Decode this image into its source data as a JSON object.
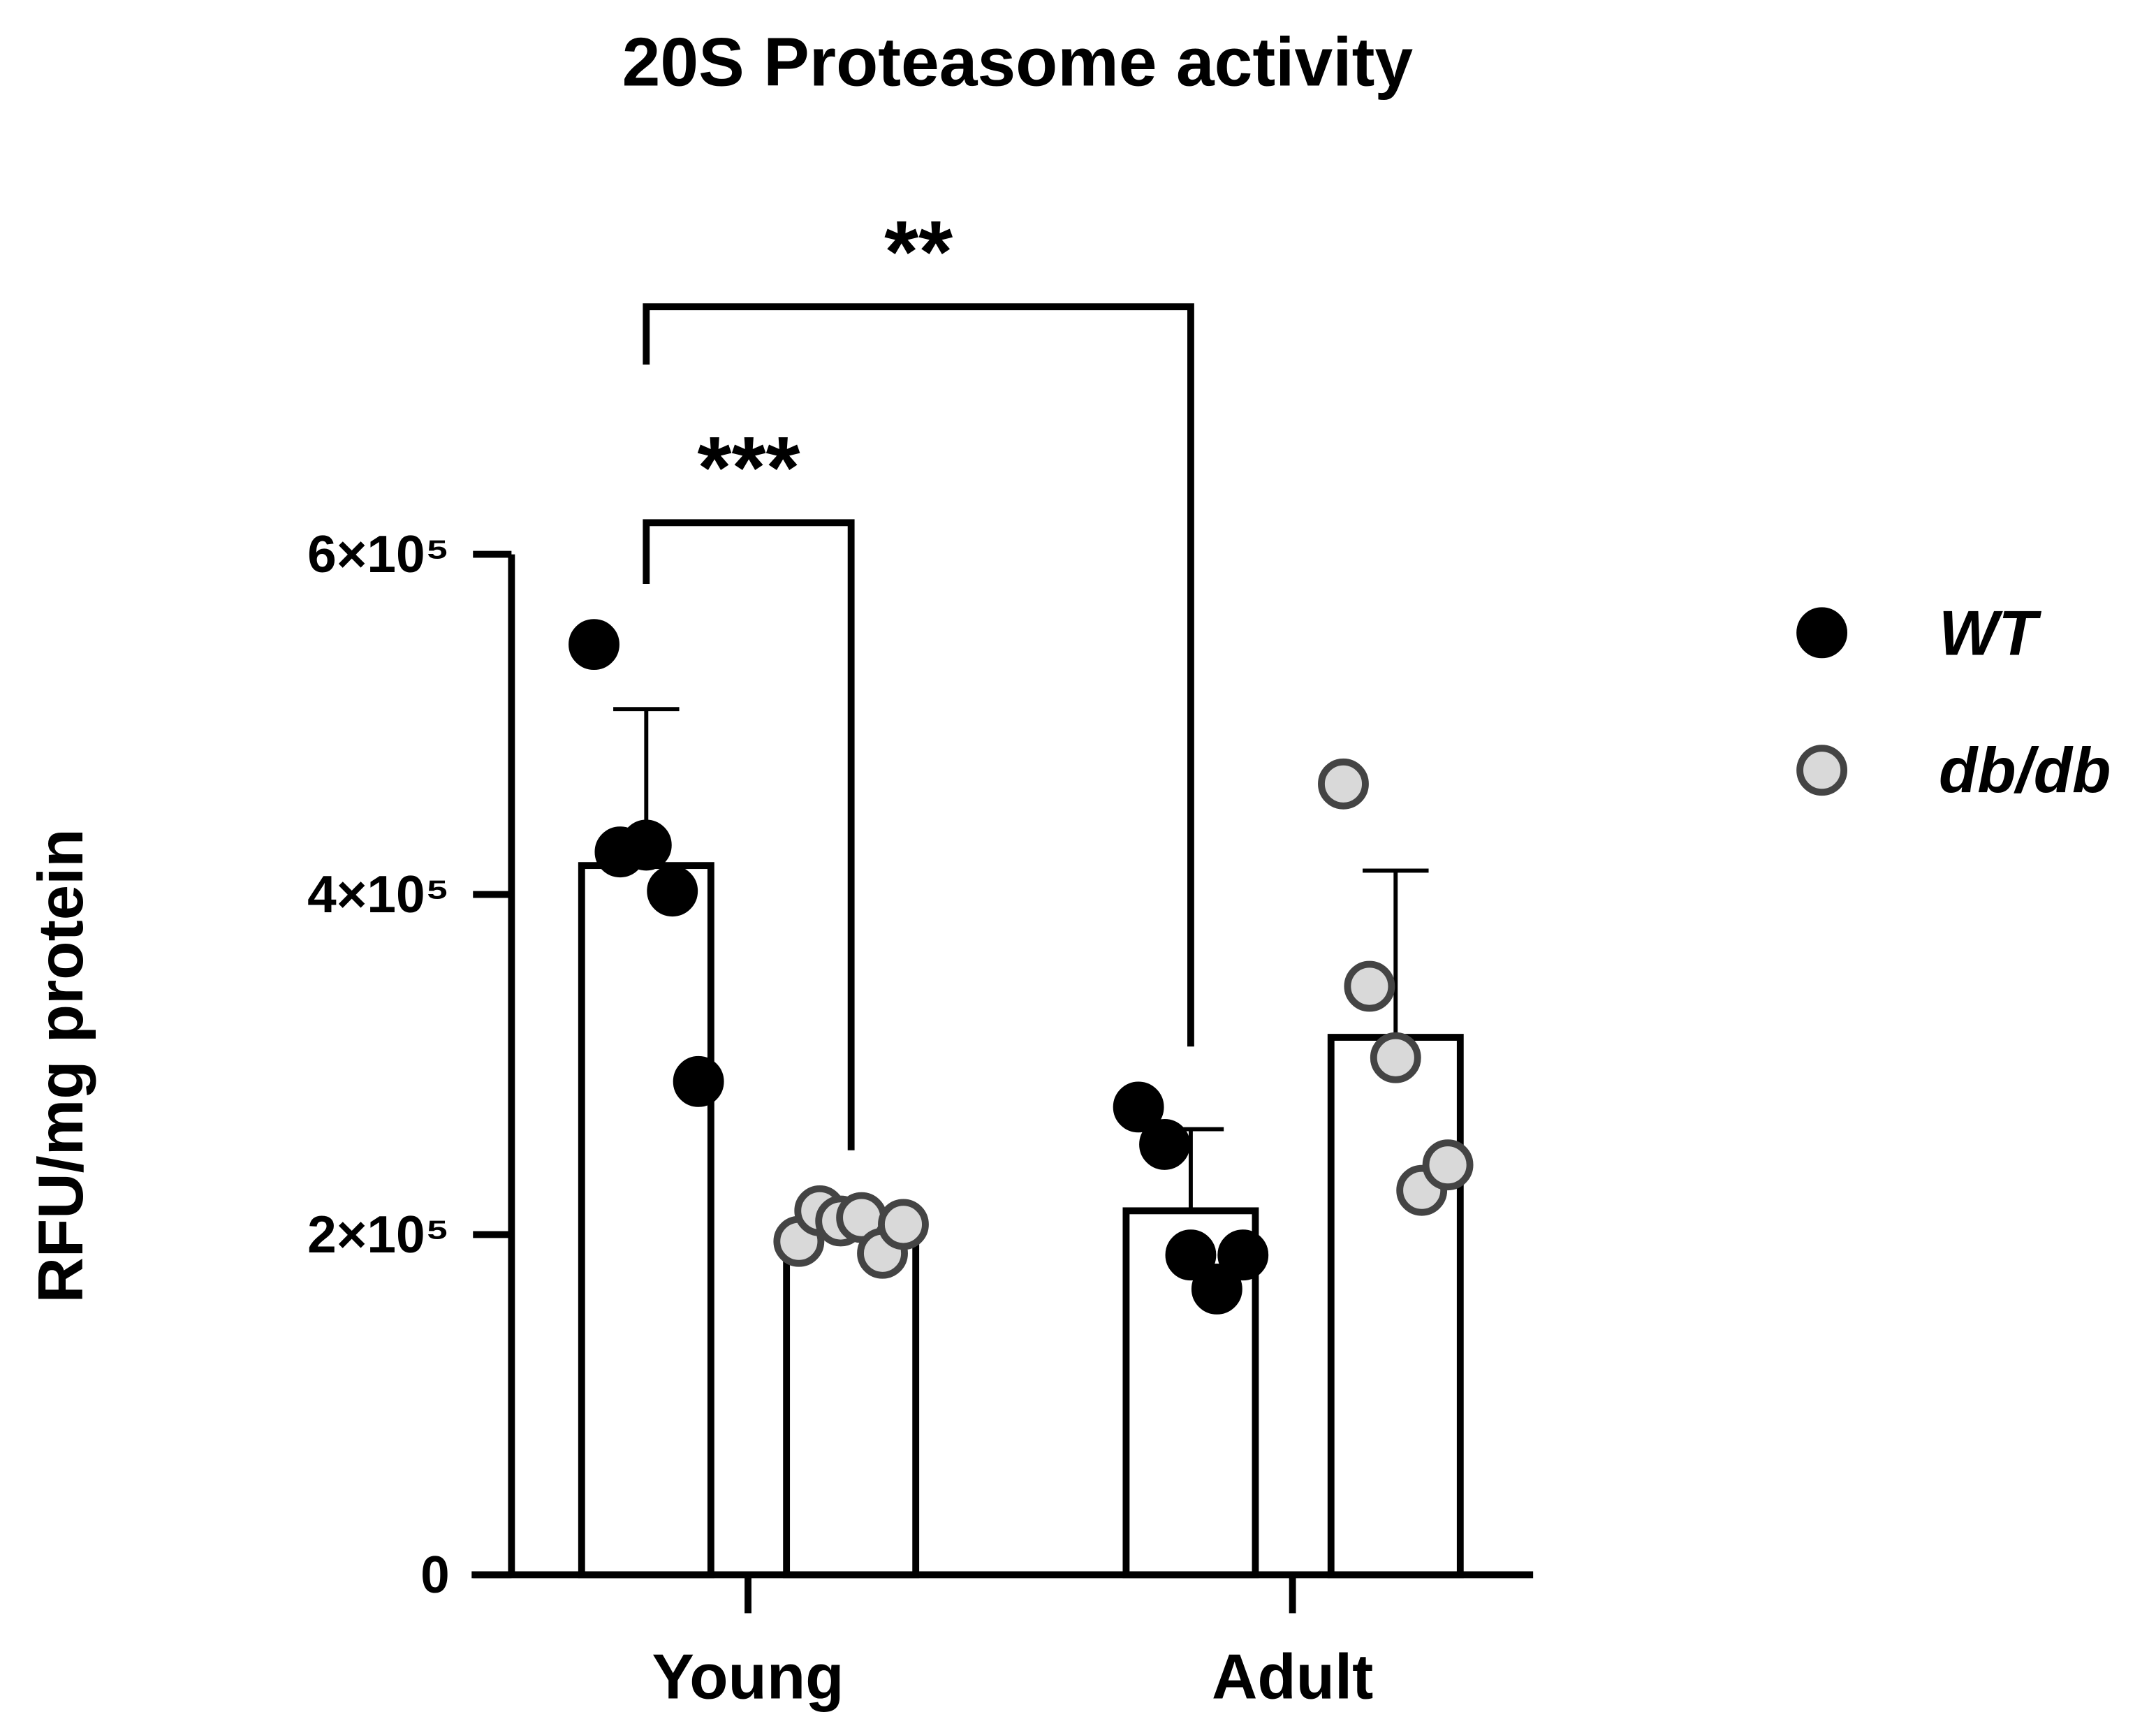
{
  "chart_data": {
    "type": "bar_scatter",
    "title": "20S Proteasome activity",
    "y_label": "RFU/mg protein",
    "categories": [
      "Young",
      "Adult"
    ],
    "series": [
      {
        "name": "WT",
        "color": "#000000",
        "values": [
          417000,
          214000
        ],
        "errors": [
          92000,
          48000
        ],
        "points": [
          [
            547000,
            425000,
            429000,
            402000,
            290000
          ],
          [
            275000,
            253000,
            188000,
            168000,
            188000
          ]
        ]
      },
      {
        "name": "db/db",
        "color": "#d9d9d9",
        "values": [
          204000,
          316000
        ],
        "errors": [
          9000,
          98000
        ],
        "points": [
          [
            196000,
            214000,
            208000,
            210000,
            189000,
            206000
          ],
          [
            465000,
            346000,
            304000,
            226000,
            241000
          ]
        ]
      }
    ],
    "ylim": [
      0,
      600000
    ],
    "yticks": [
      0,
      {
        "value": 200000,
        "label": "2×10⁵"
      },
      {
        "value": 400000,
        "label": "4×10⁵"
      },
      {
        "value": 600000,
        "label": "6×10⁵"
      }
    ],
    "significance": [
      {
        "text": "***",
        "between": [
          [
            0,
            0
          ],
          [
            0,
            1
          ]
        ]
      },
      {
        "text": "**",
        "between": [
          [
            0,
            0
          ],
          [
            1,
            0
          ]
        ]
      }
    ]
  }
}
